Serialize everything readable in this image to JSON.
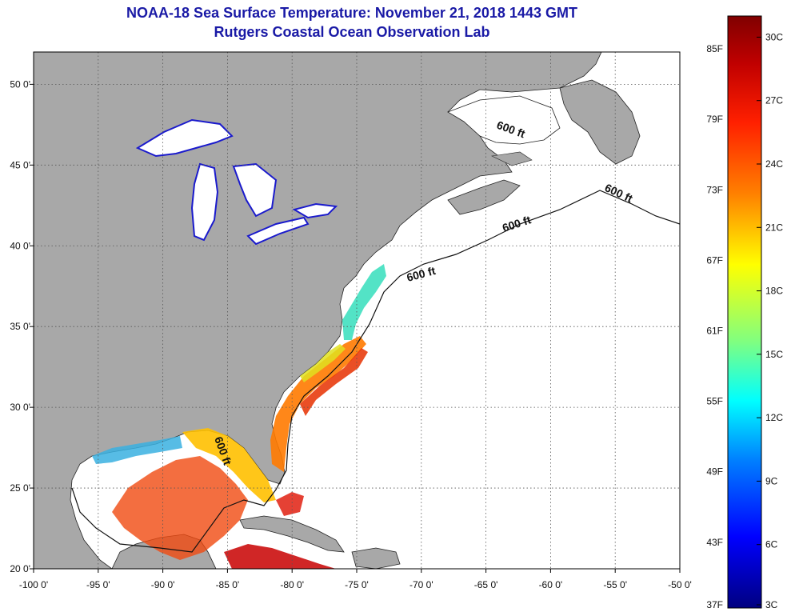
{
  "title": {
    "line1": "NOAA-18 Sea Surface Temperature:  November 21, 2018 1443 GMT",
    "line2": "Rutgers Coastal Ocean Observation Lab"
  },
  "map": {
    "lon_range": [
      -100,
      -50
    ],
    "lat_range": [
      20,
      52
    ],
    "lon_ticks": [
      {
        "value": -100,
        "label": "-100 0'"
      },
      {
        "value": -95,
        "label": "-95 0'"
      },
      {
        "value": -90,
        "label": "-90 0'"
      },
      {
        "value": -85,
        "label": "-85 0'"
      },
      {
        "value": -80,
        "label": "-80 0'"
      },
      {
        "value": -75,
        "label": "-75 0'"
      },
      {
        "value": -70,
        "label": "-70 0'"
      },
      {
        "value": -65,
        "label": "-65 0'"
      },
      {
        "value": -60,
        "label": "-60 0'"
      },
      {
        "value": -55,
        "label": "-55 0'"
      },
      {
        "value": -50,
        "label": "-50 0'"
      }
    ],
    "lat_ticks": [
      {
        "value": 20,
        "label": "20 0'"
      },
      {
        "value": 25,
        "label": "25 0'"
      },
      {
        "value": 30,
        "label": "30 0'"
      },
      {
        "value": 35,
        "label": "35 0'"
      },
      {
        "value": 40,
        "label": "40 0'"
      },
      {
        "value": 45,
        "label": "45 0'"
      },
      {
        "value": 50,
        "label": "50 0'"
      }
    ],
    "isobath_labels": [
      "600 ft",
      "600 ft",
      "600 ft",
      "600 ft",
      "600 ft"
    ],
    "colors": {
      "land": "#a8a8a8",
      "ocean": "#ffffff",
      "lakes": "#ffffff"
    }
  },
  "colorbar": {
    "fahrenheit_labels": [
      "85F",
      "79F",
      "73F",
      "67F",
      "61F",
      "55F",
      "49F",
      "43F",
      "37F"
    ],
    "celsius_labels": [
      "30C",
      "27C",
      "24C",
      "21C",
      "18C",
      "15C",
      "12C",
      "9C",
      "6C",
      "3C"
    ],
    "range_c": [
      3,
      31
    ],
    "colors_top_to_bottom": [
      "#800000",
      "#ff0000",
      "#ff8000",
      "#ffff00",
      "#80ff80",
      "#00ffff",
      "#0080ff",
      "#0000ff",
      "#000080"
    ]
  }
}
